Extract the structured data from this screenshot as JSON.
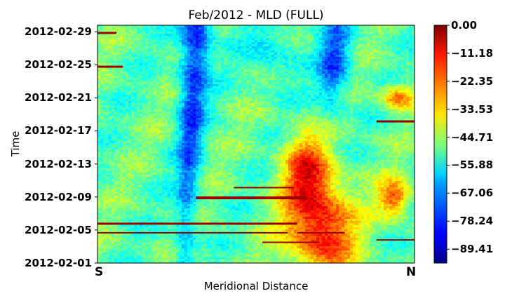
{
  "chart_data": {
    "type": "heatmap",
    "title": "Feb/2012 - MLD (FULL)",
    "xlabel": "Meridional Distance",
    "ylabel": "Time",
    "x_ticks": [
      "S",
      "N"
    ],
    "y_ticks": [
      "2012-02-01",
      "2012-02-05",
      "2012-02-09",
      "2012-02-13",
      "2012-02-17",
      "2012-02-21",
      "2012-02-25",
      "2012-02-29"
    ],
    "y_range": [
      "2012-02-01",
      "2012-03-01"
    ],
    "colorbar": {
      "colormap": "jet",
      "range": [
        -95,
        0
      ],
      "ticks": [
        "0.00",
        "−11.18",
        "−22.35",
        "−33.53",
        "−44.71",
        "−55.88",
        "−67.06",
        "−78.24",
        "−89.41"
      ]
    },
    "grid": false
  }
}
